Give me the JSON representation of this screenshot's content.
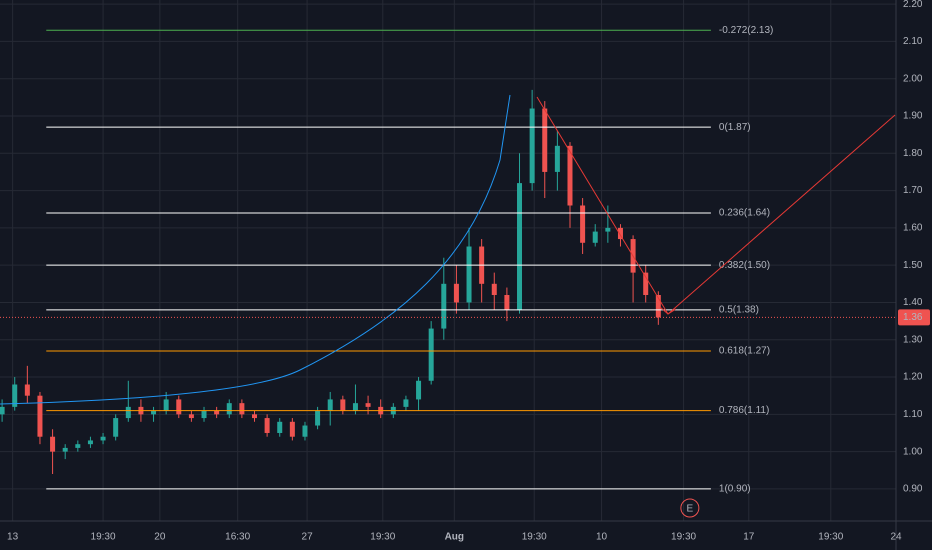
{
  "chart_data": {
    "type": "candlestick",
    "up_color": "#26a69a",
    "down_color": "#ef5350",
    "grid": true,
    "xlim": [
      12.4,
      55
    ],
    "ylim": [
      0.814,
      2.211
    ],
    "yticks": [
      {
        "value": 0.9,
        "label": "0.90"
      },
      {
        "value": 1.0,
        "label": "1.00"
      },
      {
        "value": 1.1,
        "label": "1.10"
      },
      {
        "value": 1.2,
        "label": "1.20"
      },
      {
        "value": 1.3,
        "label": "1.30"
      },
      {
        "value": 1.4,
        "label": "1.40"
      },
      {
        "value": 1.5,
        "label": "1.50"
      },
      {
        "value": 1.6,
        "label": "1.60"
      },
      {
        "value": 1.7,
        "label": "1.70"
      },
      {
        "value": 1.8,
        "label": "1.80"
      },
      {
        "value": 1.9,
        "label": "1.90"
      },
      {
        "value": 2.0,
        "label": "2.00"
      },
      {
        "value": 2.1,
        "label": "2.10"
      },
      {
        "value": 2.2,
        "label": "2.20"
      }
    ],
    "xticks": [
      13,
      {
        "value": 17.3,
        "label": "19:30"
      },
      20,
      {
        "value": 23.7,
        "label": "16:30"
      },
      27,
      {
        "value": 30.6,
        "label": "19:30"
      },
      {
        "value": 34,
        "label": "Aug"
      },
      {
        "value": 37.8,
        "label": "19:30"
      },
      {
        "value": 41,
        "label": "10"
      },
      {
        "value": 44.9,
        "label": "19:30"
      },
      {
        "value": 48,
        "label": "17"
      },
      {
        "value": 51.9,
        "label": "19:30"
      },
      {
        "value": 55,
        "label": "24"
      }
    ],
    "candles": {
      "x": [
        12.5,
        13.1,
        13.7,
        14.3,
        14.9,
        15.5,
        16.1,
        16.7,
        17.3,
        17.9,
        18.5,
        19.1,
        19.7,
        20.3,
        20.9,
        21.5,
        22.1,
        22.7,
        23.3,
        23.9,
        24.5,
        25.1,
        25.7,
        26.3,
        26.9,
        27.5,
        28.1,
        28.7,
        29.3,
        29.9,
        30.5,
        31.1,
        31.7,
        32.3,
        32.9,
        33.5,
        34.1,
        34.7,
        35.3,
        35.9,
        36.5,
        37.1,
        37.7,
        38.3,
        38.9,
        39.5,
        40.1,
        40.7,
        41.3,
        41.9,
        42.5,
        43.1,
        43.7
      ],
      "open": [
        1.1,
        1.12,
        1.18,
        1.15,
        1.04,
        1.0,
        1.01,
        1.02,
        1.03,
        1.04,
        1.09,
        1.12,
        1.1,
        1.11,
        1.14,
        1.1,
        1.09,
        1.11,
        1.1,
        1.13,
        1.1,
        1.09,
        1.05,
        1.08,
        1.04,
        1.07,
        1.11,
        1.14,
        1.11,
        1.13,
        1.12,
        1.1,
        1.12,
        1.14,
        1.19,
        1.33,
        1.45,
        1.4,
        1.55,
        1.45,
        1.42,
        1.38,
        1.72,
        1.92,
        1.75,
        1.82,
        1.66,
        1.56,
        1.59,
        1.6,
        1.57,
        1.48,
        1.42
      ],
      "high": [
        1.14,
        1.2,
        1.23,
        1.16,
        1.06,
        1.02,
        1.03,
        1.04,
        1.05,
        1.1,
        1.19,
        1.14,
        1.12,
        1.16,
        1.15,
        1.11,
        1.12,
        1.12,
        1.14,
        1.14,
        1.11,
        1.1,
        1.09,
        1.09,
        1.08,
        1.12,
        1.16,
        1.15,
        1.18,
        1.15,
        1.14,
        1.13,
        1.15,
        1.2,
        1.35,
        1.52,
        1.5,
        1.6,
        1.57,
        1.48,
        1.44,
        1.8,
        1.97,
        1.94,
        1.86,
        1.83,
        1.68,
        1.61,
        1.66,
        1.61,
        1.58,
        1.5,
        1.43
      ],
      "low": [
        1.08,
        1.11,
        1.13,
        1.02,
        0.94,
        0.98,
        1.0,
        1.01,
        1.02,
        1.03,
        1.08,
        1.08,
        1.08,
        1.1,
        1.09,
        1.08,
        1.08,
        1.09,
        1.09,
        1.09,
        1.08,
        1.04,
        1.04,
        1.03,
        1.03,
        1.06,
        1.07,
        1.1,
        1.1,
        1.1,
        1.09,
        1.09,
        1.11,
        1.11,
        1.18,
        1.3,
        1.37,
        1.38,
        1.4,
        1.38,
        1.35,
        1.37,
        1.7,
        1.68,
        1.7,
        1.6,
        1.53,
        1.55,
        1.56,
        1.55,
        1.4,
        1.4,
        1.34
      ],
      "close": [
        1.12,
        1.18,
        1.15,
        1.04,
        1.0,
        1.01,
        1.02,
        1.03,
        1.04,
        1.09,
        1.12,
        1.1,
        1.11,
        1.14,
        1.1,
        1.09,
        1.11,
        1.1,
        1.13,
        1.1,
        1.09,
        1.05,
        1.08,
        1.04,
        1.07,
        1.11,
        1.14,
        1.11,
        1.13,
        1.12,
        1.1,
        1.12,
        1.14,
        1.19,
        1.33,
        1.45,
        1.4,
        1.55,
        1.45,
        1.42,
        1.38,
        1.72,
        1.92,
        1.75,
        1.82,
        1.66,
        1.56,
        1.59,
        1.6,
        1.57,
        1.48,
        1.42,
        1.36
      ]
    },
    "fib_range": [
      14.6,
      46.2
    ],
    "fib_levels": [
      {
        "label": "-0.272(2.13)",
        "value": 2.13,
        "color": "#4caf50"
      },
      {
        "label": "0(1.87)",
        "value": 1.87,
        "color": "#ffffff"
      },
      {
        "label": "0.236(1.64)",
        "value": 1.64,
        "color": "#ffffff"
      },
      {
        "label": "0.382(1.50)",
        "value": 1.5,
        "color": "#ffffff"
      },
      {
        "label": "0.5(1.38)",
        "value": 1.38,
        "color": "#ffffff"
      },
      {
        "label": "0.618(1.27)",
        "value": 1.27,
        "color": "#ff9800"
      },
      {
        "label": "0.786(1.11)",
        "value": 1.11,
        "color": "#ff9800"
      },
      {
        "label": "1(0.90)",
        "value": 0.9,
        "color": "#ffffff"
      }
    ],
    "last_price": 1.36,
    "event": {
      "label": "E",
      "x": 45.2
    }
  }
}
